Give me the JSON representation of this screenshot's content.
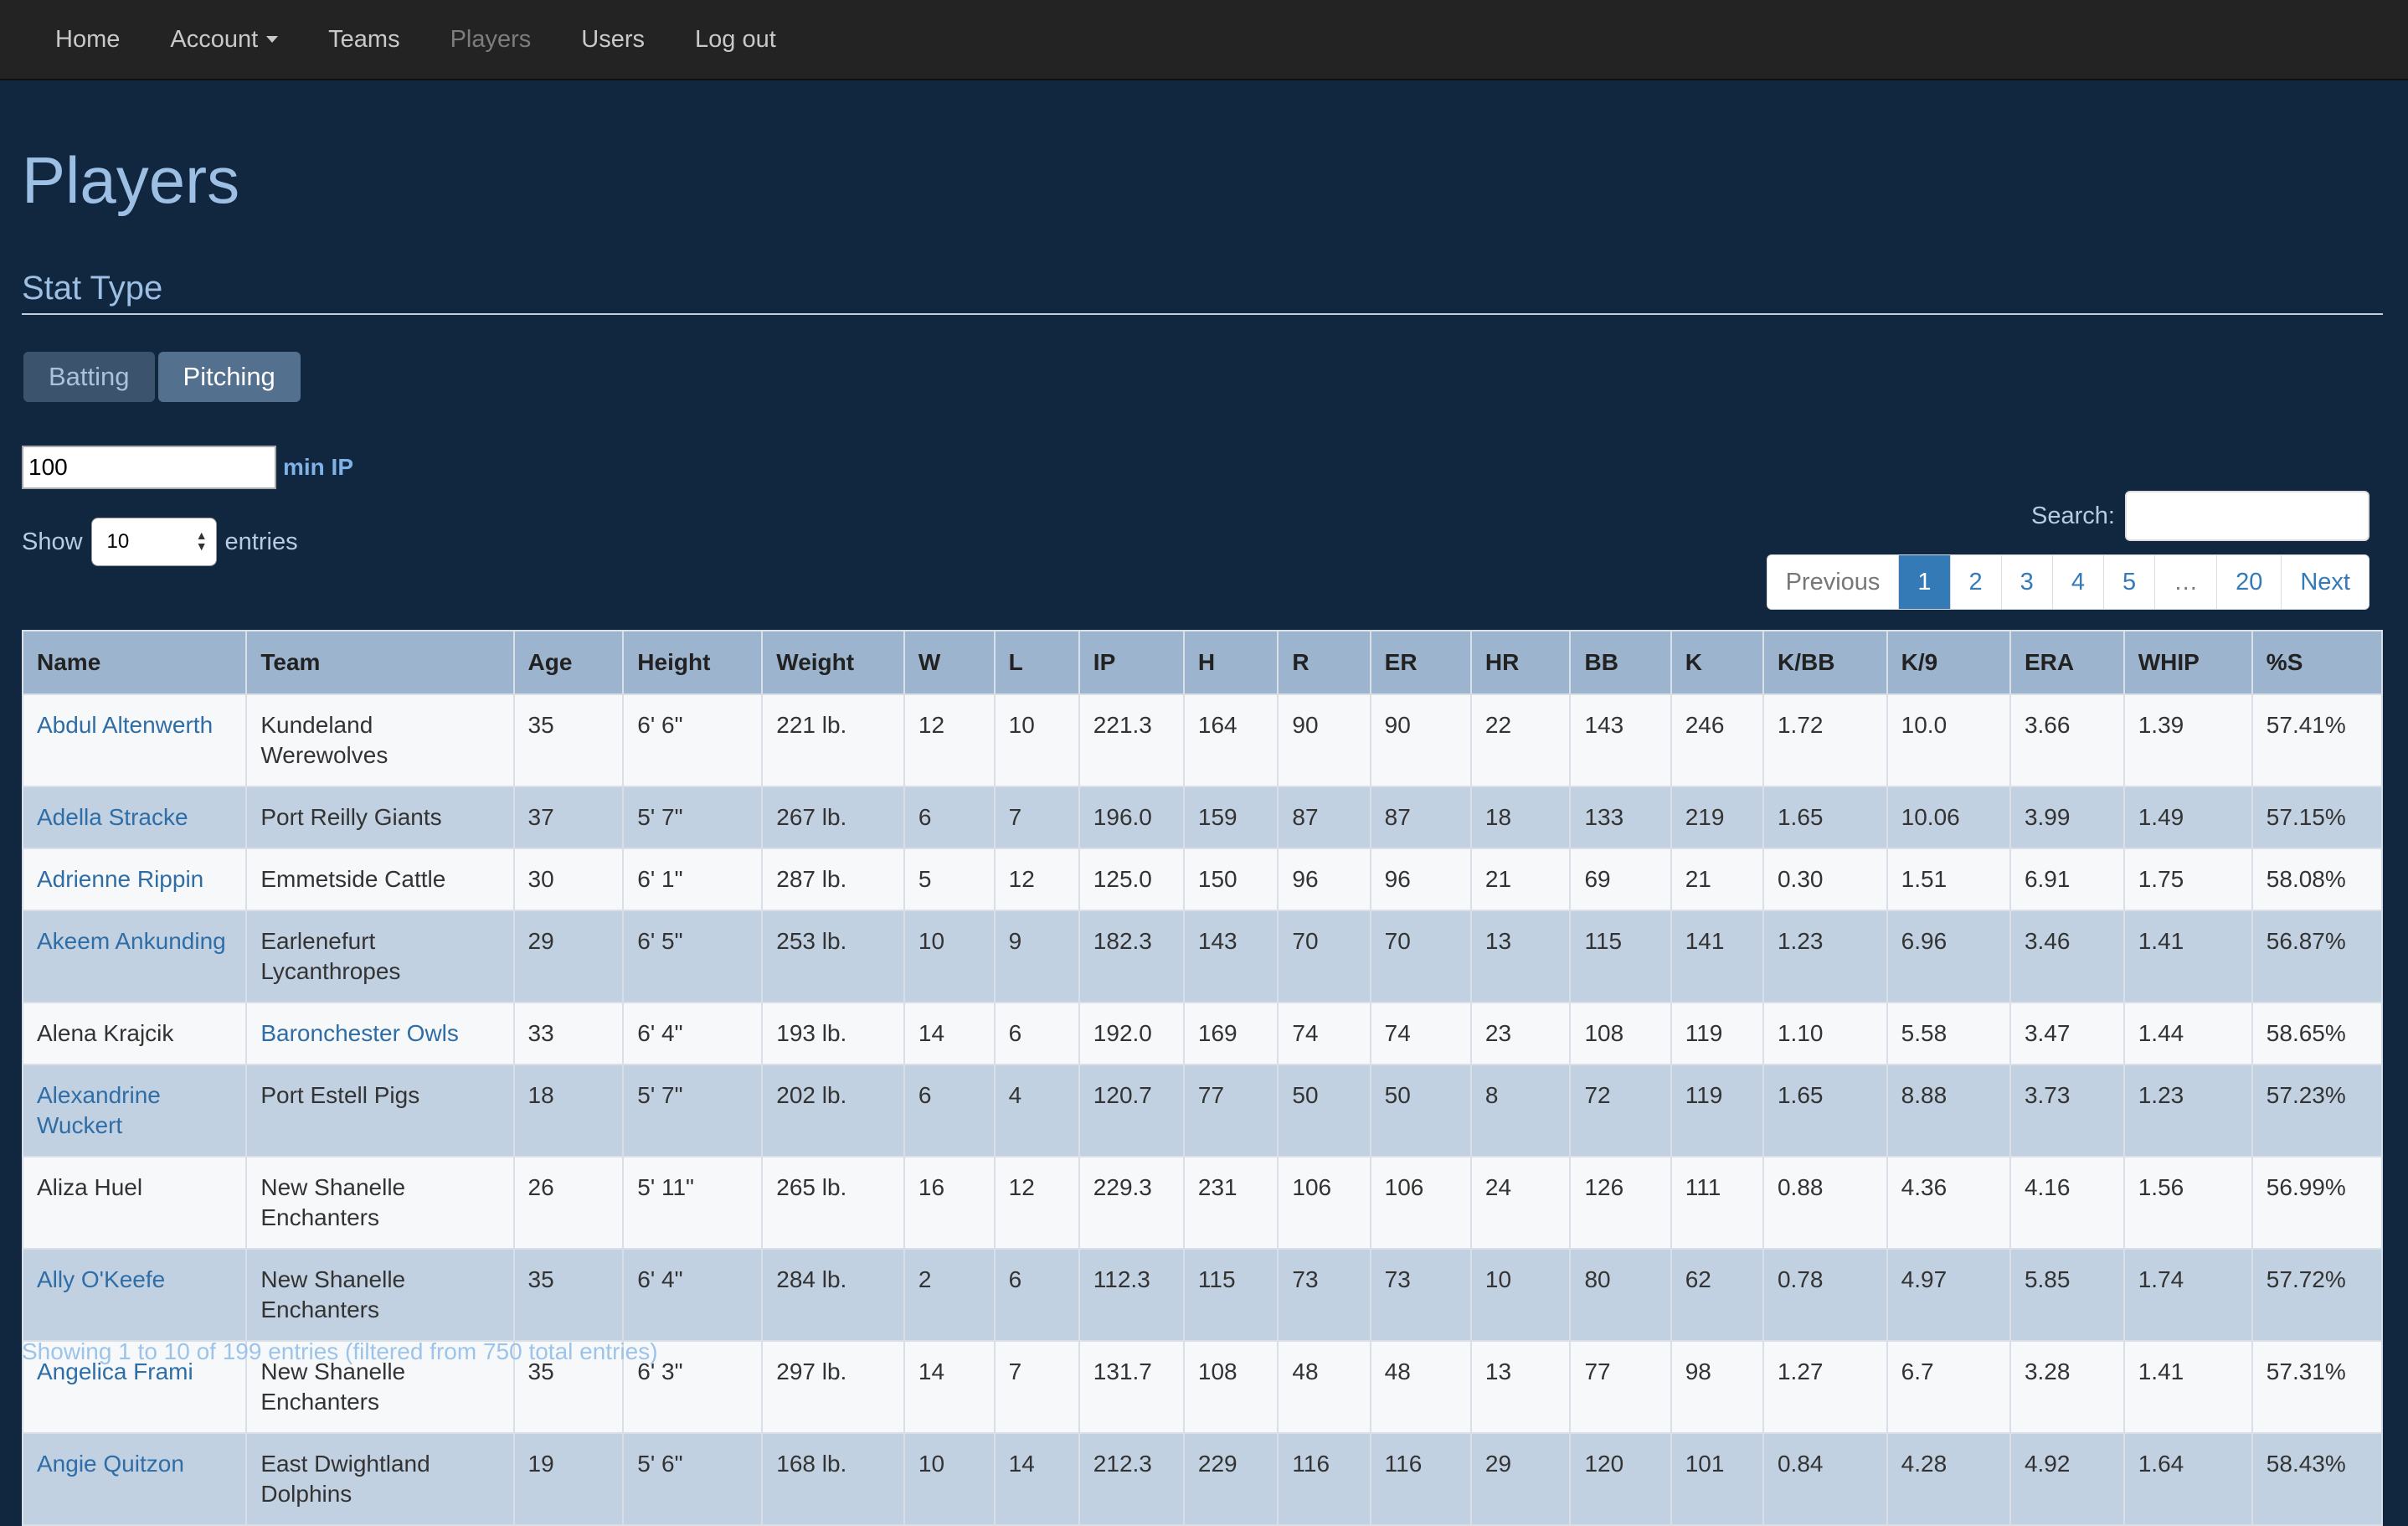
{
  "nav": {
    "items": [
      {
        "label": "Home"
      },
      {
        "label": "Account"
      },
      {
        "label": "Teams"
      },
      {
        "label": "Players"
      },
      {
        "label": "Users"
      },
      {
        "label": "Log out"
      }
    ]
  },
  "page": {
    "title": "Players",
    "section": "Stat Type"
  },
  "stat_toggle": {
    "batting": "Batting",
    "pitching": "Pitching"
  },
  "filter": {
    "min_ip_value": "100",
    "min_ip_label": "min IP"
  },
  "length": {
    "show": "Show",
    "value": "10",
    "entries": "entries"
  },
  "search": {
    "label": "Search:"
  },
  "pagination": {
    "previous": "Previous",
    "pages": [
      "1",
      "2",
      "3",
      "4",
      "5"
    ],
    "ellipsis": "…",
    "last": "20",
    "next": "Next"
  },
  "table": {
    "headers": [
      "Name",
      "Team",
      "Age",
      "Height",
      "Weight",
      "W",
      "L",
      "IP",
      "H",
      "R",
      "ER",
      "HR",
      "BB",
      "K",
      "K/BB",
      "K/9",
      "ERA",
      "WHIP",
      "%S"
    ],
    "rows": [
      [
        "Abdul Altenwerth",
        "Kundeland Werewolves",
        "35",
        "6' 6\"",
        "221 lb.",
        "12",
        "10",
        "221.3",
        "164",
        "90",
        "90",
        "22",
        "143",
        "246",
        "1.72",
        "10.0",
        "3.66",
        "1.39",
        "57.41%"
      ],
      [
        "Adella Stracke",
        "Port Reilly Giants",
        "37",
        "5' 7\"",
        "267 lb.",
        "6",
        "7",
        "196.0",
        "159",
        "87",
        "87",
        "18",
        "133",
        "219",
        "1.65",
        "10.06",
        "3.99",
        "1.49",
        "57.15%"
      ],
      [
        "Adrienne Rippin",
        "Emmetside Cattle",
        "30",
        "6' 1\"",
        "287 lb.",
        "5",
        "12",
        "125.0",
        "150",
        "96",
        "96",
        "21",
        "69",
        "21",
        "0.30",
        "1.51",
        "6.91",
        "1.75",
        "58.08%"
      ],
      [
        "Akeem Ankunding",
        "Earlenefurt Lycanthropes",
        "29",
        "6' 5\"",
        "253 lb.",
        "10",
        "9",
        "182.3",
        "143",
        "70",
        "70",
        "13",
        "115",
        "141",
        "1.23",
        "6.96",
        "3.46",
        "1.41",
        "56.87%"
      ],
      [
        "Alena Krajcik",
        "Baronchester Owls",
        "33",
        "6' 4\"",
        "193 lb.",
        "14",
        "6",
        "192.0",
        "169",
        "74",
        "74",
        "23",
        "108",
        "119",
        "1.10",
        "5.58",
        "3.47",
        "1.44",
        "58.65%"
      ],
      [
        "Alexandrine Wuckert",
        "Port Estell Pigs",
        "18",
        "5' 7\"",
        "202 lb.",
        "6",
        "4",
        "120.7",
        "77",
        "50",
        "50",
        "8",
        "72",
        "119",
        "1.65",
        "8.88",
        "3.73",
        "1.23",
        "57.23%"
      ],
      [
        "Aliza Huel",
        "New Shanelle Enchanters",
        "26",
        "5' 11\"",
        "265 lb.",
        "16",
        "12",
        "229.3",
        "231",
        "106",
        "106",
        "24",
        "126",
        "111",
        "0.88",
        "4.36",
        "4.16",
        "1.56",
        "56.99%"
      ],
      [
        "Ally O'Keefe",
        "New Shanelle Enchanters",
        "35",
        "6' 4\"",
        "284 lb.",
        "2",
        "6",
        "112.3",
        "115",
        "73",
        "73",
        "10",
        "80",
        "62",
        "0.78",
        "4.97",
        "5.85",
        "1.74",
        "57.72%"
      ],
      [
        "Angelica Frami",
        "New Shanelle Enchanters",
        "35",
        "6' 3\"",
        "297 lb.",
        "14",
        "7",
        "131.7",
        "108",
        "48",
        "48",
        "13",
        "77",
        "98",
        "1.27",
        "6.7",
        "3.28",
        "1.41",
        "57.31%"
      ],
      [
        "Angie Quitzon",
        "East Dwightland Dolphins",
        "19",
        "5' 6\"",
        "168 lb.",
        "10",
        "14",
        "212.3",
        "229",
        "116",
        "116",
        "29",
        "120",
        "101",
        "0.84",
        "4.28",
        "4.92",
        "1.64",
        "58.43%"
      ]
    ],
    "name_links": [
      true,
      true,
      true,
      true,
      false,
      true,
      false,
      true,
      true,
      true
    ],
    "team_links": [
      false,
      false,
      false,
      false,
      true,
      false,
      false,
      false,
      false,
      false
    ]
  },
  "info": "Showing 1 to 10 of 199 entries (filtered from 750 total entries)"
}
